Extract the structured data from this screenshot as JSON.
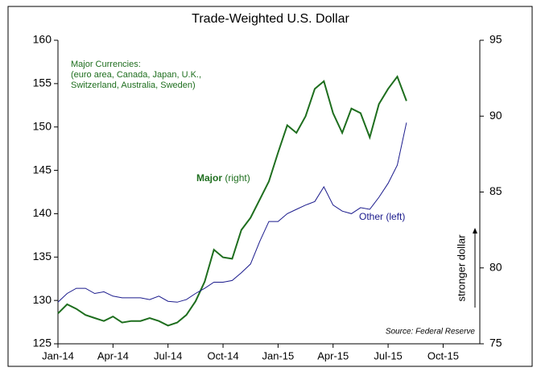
{
  "chart_data": {
    "type": "line",
    "title": "Trade-Weighted U.S. Dollar",
    "annotations": [
      "Major Currencies:",
      "(euro area, Canada, Japan, U.K.,",
      "Switzerland, Australia, Sweden)",
      "(right)",
      "stronger dollar",
      "Source: Federal Reserve"
    ],
    "x": [
      0,
      0.5,
      1,
      1.5,
      2,
      2.5,
      3,
      3.5,
      4,
      4.5,
      5,
      5.5,
      6,
      6.5,
      7,
      7.5,
      8,
      8.5,
      9,
      9.5,
      10,
      10.5,
      11,
      11.5,
      12,
      12.5,
      13,
      13.5,
      14,
      14.5,
      15,
      15.5,
      16,
      16.5,
      17,
      17.5,
      18,
      18.5,
      19
    ],
    "xlim": [
      0,
      23
    ],
    "xticks": [
      {
        "value": 0,
        "label": "Jan-14"
      },
      {
        "value": 3,
        "label": "Apr-14"
      },
      {
        "value": 6,
        "label": "Jul-14"
      },
      {
        "value": 9,
        "label": "Oct-14"
      },
      {
        "value": 12,
        "label": "Jan-15"
      },
      {
        "value": 15,
        "label": "Apr-15"
      },
      {
        "value": 18,
        "label": "Jul-15"
      },
      {
        "value": 21,
        "label": "Oct-15"
      }
    ],
    "ylim": [
      125,
      160
    ],
    "yticks": [
      125,
      130,
      135,
      140,
      145,
      150,
      155,
      160
    ],
    "y2lim": [
      75,
      95
    ],
    "y2ticks": [
      75,
      80,
      85,
      90,
      95
    ],
    "series": [
      {
        "name": "Major",
        "color": "#1e6e1e",
        "axis": "y2",
        "values": [
          77.0,
          77.6,
          77.3,
          76.9,
          76.7,
          76.5,
          76.8,
          76.4,
          76.5,
          76.5,
          76.7,
          76.5,
          76.2,
          76.4,
          76.9,
          77.8,
          79.1,
          81.2,
          80.7,
          80.6,
          82.5,
          83.3,
          84.5,
          85.7,
          87.6,
          89.4,
          88.9,
          90.0,
          91.8,
          92.3,
          90.2,
          88.9,
          90.5,
          90.2,
          88.6,
          90.8,
          91.8,
          92.6,
          91.0
        ]
      },
      {
        "name": "Other (left)",
        "color": "#1a1a8c",
        "values": [
          129.8,
          130.8,
          131.4,
          131.4,
          130.8,
          131.0,
          130.5,
          130.3,
          130.3,
          130.3,
          130.1,
          130.5,
          129.9,
          129.8,
          130.1,
          130.8,
          131.4,
          132.1,
          132.1,
          132.3,
          133.2,
          134.2,
          136.8,
          139.1,
          139.1,
          140.0,
          140.5,
          141.0,
          141.4,
          143.1,
          141.0,
          140.3,
          140.0,
          140.7,
          140.5,
          141.9,
          143.5,
          145.6,
          150.5
        ]
      }
    ]
  }
}
